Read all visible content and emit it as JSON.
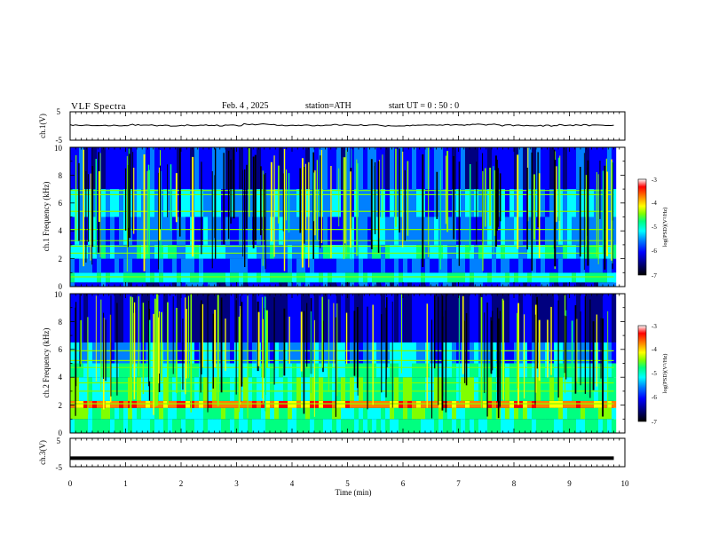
{
  "header": {
    "title": "VLF  Spectra",
    "date": "Feb. 4 ,  2025",
    "station": "station=ATH",
    "start": "start  UT  =   0 : 50 : 0"
  },
  "colors": {
    "trace": "#000000",
    "colormap": [
      "#000000",
      "#00007f",
      "#0000ff",
      "#0080ff",
      "#00ffff",
      "#00ff80",
      "#80ff00",
      "#ffff00",
      "#ff8000",
      "#ff0000",
      "#ffffff"
    ]
  },
  "chart_data": [
    {
      "type": "line",
      "panel": "ch1-waveform",
      "ylabel": "ch.1(V)",
      "ylim": [
        -5,
        5
      ],
      "yticks": [
        "5",
        "-5"
      ],
      "series": [
        {
          "description": "waveform roughly constant near 0 V with small fluctuations",
          "values": [
            0.3,
            0.2,
            0.4,
            0.1,
            0.3,
            0.2,
            0.6,
            0.3,
            0.2,
            0.4,
            0.3,
            0.1,
            0.4,
            0.3,
            0.5,
            0.2,
            0.1,
            0.3,
            0.2,
            0.4
          ]
        }
      ]
    },
    {
      "type": "heatmap",
      "panel": "ch1-spectrogram",
      "ylabel": "ch.1 Frequency  (kHz)",
      "ylim": [
        0,
        10
      ],
      "yticks": [
        "0",
        "2",
        "4",
        "6",
        "8",
        "10"
      ],
      "colorbar": {
        "label": "log(PSD)(V²/Hz)",
        "range": [
          -7,
          -3
        ],
        "ticks": [
          "-3",
          "-4",
          "-5",
          "-6",
          "-7"
        ]
      },
      "bands_khz": [
        {
          "from": 0,
          "to": 0.3,
          "level": 0.2
        },
        {
          "from": 0.3,
          "to": 1.0,
          "level": 0.45
        },
        {
          "from": 1.0,
          "to": 2.0,
          "level": 0.25
        },
        {
          "from": 2.0,
          "to": 3.0,
          "level": 0.4
        },
        {
          "from": 3.0,
          "to": 5.0,
          "level": 0.28
        },
        {
          "from": 5.0,
          "to": 7.0,
          "level": 0.32
        },
        {
          "from": 7.0,
          "to": 10.0,
          "level": 0.2
        }
      ],
      "lines_khz": [
        0.7,
        2.4,
        2.9,
        3.3,
        4.1,
        5.4,
        6.6,
        6.9
      ]
    },
    {
      "type": "heatmap",
      "panel": "ch2-spectrogram",
      "ylabel": "ch.2 Frequency  (kHz)",
      "ylim": [
        0,
        10
      ],
      "yticks": [
        "0",
        "2",
        "4",
        "6",
        "8",
        "10"
      ],
      "colorbar": {
        "label": "log(PSD)(V²/Hz)",
        "range": [
          -7,
          -3
        ],
        "ticks": [
          "-3",
          "-4",
          "-5",
          "-6",
          "-7"
        ]
      },
      "bands_khz": [
        {
          "from": 0,
          "to": 1.0,
          "level": 0.45
        },
        {
          "from": 1.0,
          "to": 1.8,
          "level": 0.5
        },
        {
          "from": 1.8,
          "to": 2.3,
          "level": 0.8
        },
        {
          "from": 2.3,
          "to": 4.0,
          "level": 0.5
        },
        {
          "from": 4.0,
          "to": 5.0,
          "level": 0.45
        },
        {
          "from": 5.0,
          "to": 6.5,
          "level": 0.3
        },
        {
          "from": 6.5,
          "to": 10.0,
          "level": 0.15
        }
      ],
      "lines_khz": [
        2.1,
        3.0,
        3.6,
        4.7,
        5.2,
        5.9
      ]
    },
    {
      "type": "line",
      "panel": "ch3-waveform",
      "ylabel": "ch.3(V)",
      "ylim": [
        -5,
        5
      ],
      "yticks": [
        "5",
        "-5"
      ],
      "series": [
        {
          "description": "flat thick trace near -2 V",
          "values": [
            -2,
            -2,
            -2,
            -2,
            -2
          ]
        }
      ]
    }
  ],
  "xaxis": {
    "label": "Time  (min)",
    "range": [
      0,
      10
    ],
    "ticks": [
      "0",
      "1",
      "2",
      "3",
      "4",
      "5",
      "6",
      "7",
      "8",
      "9",
      "10"
    ],
    "data_end_min": 9.8
  }
}
